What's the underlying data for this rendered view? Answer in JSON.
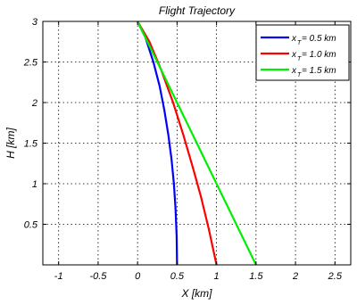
{
  "chart_data": {
    "type": "line",
    "title": "Flight Trajectory",
    "xlabel": "X [km]",
    "ylabel": "H [km]",
    "xlim": [
      -1.2,
      2.7
    ],
    "ylim": [
      0,
      3
    ],
    "xticks": [
      -1,
      -0.5,
      0,
      0.5,
      1,
      1.5,
      2,
      2.5
    ],
    "xtick_labels": [
      "-1",
      "-0.5",
      "0",
      "0.5",
      "1",
      "1.5",
      "2",
      "2.5"
    ],
    "yticks": [
      0.5,
      1,
      1.5,
      2,
      2.5,
      3
    ],
    "ytick_labels": [
      "0.5",
      "1",
      "1.5",
      "2",
      "2.5",
      "3"
    ],
    "grid": true,
    "legend_position": "top-right",
    "series": [
      {
        "name": "x_T = 0.5 km",
        "legend_main": "x",
        "legend_sub": "T",
        "legend_rest": " = 0.5 km",
        "color": "#0000ff",
        "x": [
          0,
          0.1,
          0.2,
          0.28,
          0.34,
          0.39,
          0.43,
          0.46,
          0.48,
          0.495,
          0.5
        ],
        "y": [
          3,
          2.8,
          2.5,
          2.2,
          1.9,
          1.6,
          1.3,
          1.0,
          0.7,
          0.35,
          0
        ]
      },
      {
        "name": "x_T = 1.0 km",
        "legend_main": "x",
        "legend_sub": "T",
        "legend_rest": " = 1.0 km",
        "color": "#ff0000",
        "x": [
          0,
          0.15,
          0.3,
          0.45,
          0.58,
          0.7,
          0.8,
          0.9,
          1.0
        ],
        "y": [
          3,
          2.75,
          2.4,
          2.0,
          1.6,
          1.2,
          0.85,
          0.45,
          0
        ]
      },
      {
        "name": "x_T = 1.5 km",
        "legend_main": "x",
        "legend_sub": "T",
        "legend_rest": " = 1.5 km",
        "color": "#00ee00",
        "x": [
          0,
          0.75,
          1.5
        ],
        "y": [
          3,
          1.5,
          0
        ]
      }
    ]
  }
}
